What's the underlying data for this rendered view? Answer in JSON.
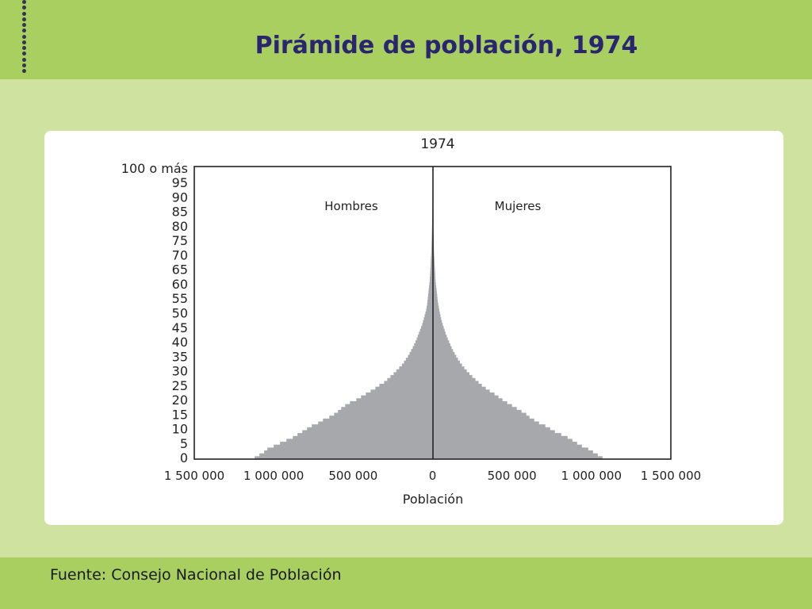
{
  "slide": {
    "title": "Pirámide de población, 1974",
    "source": "Fuente: Consejo Nacional de Población"
  },
  "colors": {
    "header_band": "#a8cf5f",
    "background": "#d0e29f",
    "title": "#2a2570",
    "bars": "#a6a8ab"
  },
  "chart_data": {
    "type": "bar",
    "orientation": "horizontal-population-pyramid",
    "title": "1974",
    "xlabel": "Población",
    "ylabel": "",
    "xlim": [
      -1500000,
      1500000
    ],
    "ylim": [
      0,
      100
    ],
    "x_ticks": [
      -1500000,
      -1000000,
      -500000,
      0,
      500000,
      1000000,
      1500000
    ],
    "x_tick_labels": [
      "1 500 000",
      "1 000 000",
      "500 000",
      "0",
      "500 000",
      "1 000 000",
      "1 500 000"
    ],
    "y_ticks": [
      0,
      5,
      10,
      15,
      20,
      25,
      30,
      35,
      40,
      45,
      50,
      55,
      60,
      65,
      70,
      75,
      80,
      85,
      90,
      95,
      100
    ],
    "y_tick_labels": [
      "0",
      "5",
      "10",
      "15",
      "20",
      "25",
      "30",
      "35",
      "40",
      "45",
      "50",
      "55",
      "60",
      "65",
      "70",
      "75",
      "80",
      "85",
      "90",
      "95",
      "100 o más"
    ],
    "series": [
      {
        "name": "Hombres",
        "side": "left",
        "values": [
          1120000,
          1090000,
          1060000,
          1040000,
          1000000,
          960000,
          920000,
          880000,
          850000,
          820000,
          790000,
          760000,
          720000,
          690000,
          650000,
          620000,
          595000,
          575000,
          550000,
          520000,
          480000,
          450000,
          420000,
          390000,
          360000,
          335000,
          305000,
          285000,
          265000,
          245000,
          228000,
          210000,
          193000,
          180000,
          168000,
          155000,
          145000,
          135000,
          125000,
          116000,
          108000,
          100000,
          93000,
          86000,
          79000,
          72000,
          65000,
          60000,
          55000,
          50000,
          45000,
          40000,
          37000,
          34000,
          32000,
          30000,
          28000,
          26000,
          24000,
          22000,
          20000,
          18000,
          17000,
          16000,
          15000,
          14000,
          13000,
          12000,
          11000,
          10000,
          9000,
          8000,
          7500,
          7000,
          6500,
          6000,
          5500,
          5000,
          4500,
          4000,
          3500,
          3000,
          2700,
          2400,
          2100,
          1800,
          1500,
          1300,
          1100,
          900,
          700,
          600,
          500,
          400,
          300,
          250,
          200,
          150,
          100,
          80,
          60
        ]
      },
      {
        "name": "Mujeres",
        "side": "right",
        "values": [
          1070000,
          1040000,
          1010000,
          980000,
          940000,
          910000,
          880000,
          850000,
          810000,
          770000,
          740000,
          710000,
          670000,
          640000,
          610000,
          590000,
          560000,
          530000,
          500000,
          470000,
          440000,
          415000,
          390000,
          360000,
          335000,
          310000,
          290000,
          270000,
          250000,
          232000,
          215000,
          200000,
          185000,
          172000,
          160000,
          149000,
          139000,
          129000,
          120000,
          112000,
          104000,
          96000,
          89000,
          82000,
          76000,
          70000,
          64000,
          59000,
          54000,
          50000,
          46000,
          42000,
          39000,
          36000,
          33000,
          31000,
          29000,
          27000,
          25000,
          23000,
          21000,
          19000,
          18000,
          17000,
          16000,
          15000,
          14000,
          13000,
          12000,
          11000,
          10000,
          9000,
          8500,
          8000,
          7500,
          7000,
          6500,
          6000,
          5500,
          5000,
          4500,
          4000,
          3600,
          3200,
          2800,
          2400,
          2000,
          1700,
          1400,
          1100,
          900,
          700,
          550,
          450,
          350,
          280,
          220,
          170,
          130,
          100,
          80
        ]
      }
    ],
    "grid": false
  }
}
